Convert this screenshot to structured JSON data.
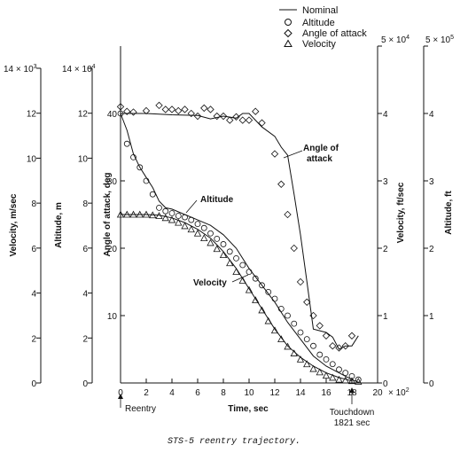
{
  "caption": "STS-5 reentry trajectory.",
  "legend": {
    "position": "top-right",
    "entries": [
      {
        "label": "Nominal",
        "marker": "line"
      },
      {
        "label": "Altitude",
        "marker": "circle"
      },
      {
        "label": "Angle of attack",
        "marker": "diamond"
      },
      {
        "label": "Velocity",
        "marker": "triangle"
      }
    ]
  },
  "annotations": {
    "aoa": [
      "Angle of",
      "attack"
    ],
    "altitude": "Altitude",
    "velocity": "Velocity",
    "reentry": "Reentry",
    "touchdown": [
      "Touchdown",
      "1821 sec"
    ]
  },
  "axes": {
    "x": {
      "label": "Time, sec",
      "ticks": [
        "0",
        "2",
        "4",
        "6",
        "8",
        "10",
        "12",
        "14",
        "16",
        "18",
        "20"
      ],
      "multiplier": "× 10",
      "multiplier_exp": "2"
    },
    "aoa": {
      "label": "Angle of attack, deg",
      "ticks": [
        "10",
        "20",
        "30",
        "40"
      ]
    },
    "vel_si": {
      "label": "Velocity, m/sec",
      "ticks": [
        "0",
        "2",
        "4",
        "6",
        "8",
        "10",
        "12"
      ],
      "multiplier": "14 × 10",
      "multiplier_exp": "3"
    },
    "alt_si": {
      "label": "Altitude, m",
      "ticks": [
        "0",
        "2",
        "4",
        "6",
        "8",
        "10",
        "12"
      ],
      "multiplier": "14 × 10",
      "multiplier_exp": "4"
    },
    "vel_ft": {
      "label": "Velocity, ft/sec",
      "ticks": [
        "0",
        "1",
        "2",
        "3",
        "4"
      ],
      "multiplier": "5 × 10",
      "multiplier_exp": "4"
    },
    "alt_ft": {
      "label": "Altitude, ft",
      "ticks": [
        "0",
        "1",
        "2",
        "3",
        "4"
      ],
      "multiplier": "5 × 10",
      "multiplier_exp": "5"
    }
  },
  "chart_data": {
    "type": "line",
    "xlabel": "Time, sec (× 10^2)",
    "ylabel": "Angle of attack, deg",
    "xlim": [
      0,
      20
    ],
    "ylim": [
      0,
      50
    ],
    "grid": false,
    "series": [
      {
        "name": "Angle of attack",
        "nominal": [
          [
            0,
            40.0
          ],
          [
            2,
            40.0
          ],
          [
            4,
            39.8
          ],
          [
            6,
            39.7
          ],
          [
            7,
            39.2
          ],
          [
            8,
            39.6
          ],
          [
            9,
            39.3
          ],
          [
            9.5,
            40.0
          ],
          [
            10,
            40.0
          ],
          [
            11,
            38.0
          ],
          [
            12,
            36.6
          ],
          [
            12.5,
            35.0
          ],
          [
            13,
            33.8
          ],
          [
            13.5,
            28.0
          ],
          [
            14,
            22.0
          ],
          [
            14.5,
            15.0
          ],
          [
            15,
            8.0
          ],
          [
            16,
            7.5
          ],
          [
            16.5,
            6.8
          ],
          [
            17,
            5.0
          ],
          [
            17.5,
            5.5
          ],
          [
            18,
            5.5
          ],
          [
            18.5,
            7.0
          ]
        ],
        "flight": [
          [
            0,
            41.0
          ],
          [
            0.5,
            40.3
          ],
          [
            1,
            40.2
          ],
          [
            2,
            40.4
          ],
          [
            3,
            41.2
          ],
          [
            3.5,
            40.6
          ],
          [
            4,
            40.6
          ],
          [
            4.5,
            40.4
          ],
          [
            5,
            40.6
          ],
          [
            5.5,
            40.0
          ],
          [
            6,
            39.6
          ],
          [
            6.5,
            40.8
          ],
          [
            7,
            40.6
          ],
          [
            7.5,
            39.6
          ],
          [
            8,
            39.6
          ],
          [
            8.5,
            39.0
          ],
          [
            9,
            39.5
          ],
          [
            9.5,
            39.0
          ],
          [
            10,
            39.0
          ],
          [
            10.5,
            40.3
          ],
          [
            11,
            38.6
          ],
          [
            12,
            34.0
          ],
          [
            12.5,
            29.5
          ],
          [
            13,
            25.0
          ],
          [
            13.5,
            20.0
          ],
          [
            14,
            15.0
          ],
          [
            14.5,
            12.0
          ],
          [
            15,
            10.0
          ],
          [
            15.5,
            8.5
          ],
          [
            16,
            7.0
          ],
          [
            16.5,
            5.5
          ],
          [
            17,
            5.2
          ],
          [
            17.5,
            5.5
          ],
          [
            18,
            7.0
          ]
        ]
      },
      {
        "name": "Altitude",
        "nominal": [
          [
            0,
            40.0
          ],
          [
            0.5,
            37.5
          ],
          [
            1,
            34.0
          ],
          [
            1.5,
            32.0
          ],
          [
            2,
            30.5
          ],
          [
            2.5,
            29.0
          ],
          [
            3,
            27.0
          ],
          [
            3.5,
            26.0
          ],
          [
            4,
            25.8
          ],
          [
            5,
            25.0
          ],
          [
            6,
            24.2
          ],
          [
            7,
            23.4
          ],
          [
            8,
            22.0
          ],
          [
            9,
            20.0
          ],
          [
            10,
            17.0
          ],
          [
            11,
            14.5
          ],
          [
            12,
            12.0
          ],
          [
            13,
            9.0
          ],
          [
            14,
            6.5
          ],
          [
            15,
            4.0
          ],
          [
            16,
            2.5
          ],
          [
            17,
            1.5
          ],
          [
            18,
            0.5
          ],
          [
            18.5,
            0.1
          ]
        ],
        "flight": [
          [
            0,
            40.0
          ],
          [
            0.5,
            35.5
          ],
          [
            1,
            33.5
          ],
          [
            1.5,
            32.0
          ],
          [
            2,
            30.0
          ],
          [
            2.5,
            28.0
          ],
          [
            3,
            26.0
          ],
          [
            3.5,
            25.5
          ],
          [
            4,
            25.2
          ],
          [
            4.5,
            24.8
          ],
          [
            5,
            24.6
          ],
          [
            5.5,
            24.2
          ],
          [
            6,
            23.6
          ],
          [
            6.5,
            23.0
          ],
          [
            7,
            22.2
          ],
          [
            7.5,
            21.4
          ],
          [
            8,
            20.6
          ],
          [
            8.5,
            19.5
          ],
          [
            9,
            18.5
          ],
          [
            9.5,
            17.5
          ],
          [
            10,
            16.5
          ],
          [
            10.5,
            15.5
          ],
          [
            11,
            14.5
          ],
          [
            11.5,
            13.5
          ],
          [
            12,
            12.5
          ],
          [
            12.5,
            11.0
          ],
          [
            13,
            10.0
          ],
          [
            13.5,
            8.8
          ],
          [
            14,
            7.5
          ],
          [
            14.5,
            6.5
          ],
          [
            15,
            5.5
          ],
          [
            15.5,
            4.2
          ],
          [
            16,
            3.5
          ],
          [
            16.5,
            2.8
          ],
          [
            17,
            2.0
          ],
          [
            17.5,
            1.5
          ],
          [
            18,
            1.0
          ],
          [
            18.5,
            0.5
          ]
        ]
      },
      {
        "name": "Velocity",
        "nominal": [
          [
            0,
            25.0
          ],
          [
            2,
            25.0
          ],
          [
            3,
            24.9
          ],
          [
            4,
            24.5
          ],
          [
            5,
            23.8
          ],
          [
            6,
            22.8
          ],
          [
            7,
            21.5
          ],
          [
            8,
            19.5
          ],
          [
            9,
            17.0
          ],
          [
            10,
            14.0
          ],
          [
            11,
            11.0
          ],
          [
            12,
            8.0
          ],
          [
            13,
            5.5
          ],
          [
            14,
            3.8
          ],
          [
            15,
            2.5
          ],
          [
            16,
            1.5
          ],
          [
            17,
            0.8
          ],
          [
            18,
            0.3
          ]
        ],
        "flight": [
          [
            0,
            25.0
          ],
          [
            0.5,
            25.0
          ],
          [
            1,
            25.0
          ],
          [
            1.5,
            25.0
          ],
          [
            2,
            25.0
          ],
          [
            2.5,
            24.9
          ],
          [
            3,
            24.8
          ],
          [
            3.5,
            24.5
          ],
          [
            4,
            24.2
          ],
          [
            4.5,
            23.8
          ],
          [
            5,
            23.3
          ],
          [
            5.5,
            22.8
          ],
          [
            6,
            22.2
          ],
          [
            6.5,
            21.5
          ],
          [
            7,
            20.8
          ],
          [
            7.5,
            19.9
          ],
          [
            8,
            19.0
          ],
          [
            8.5,
            17.8
          ],
          [
            9,
            16.5
          ],
          [
            9.5,
            15.2
          ],
          [
            10,
            13.8
          ],
          [
            10.5,
            12.3
          ],
          [
            11,
            10.8
          ],
          [
            11.5,
            9.2
          ],
          [
            12,
            7.8
          ],
          [
            12.5,
            6.5
          ],
          [
            13,
            5.4
          ],
          [
            13.5,
            4.4
          ],
          [
            14,
            3.5
          ],
          [
            14.5,
            2.8
          ],
          [
            15,
            2.1
          ],
          [
            15.5,
            1.6
          ],
          [
            16,
            1.1
          ],
          [
            16.5,
            0.8
          ],
          [
            17,
            0.5
          ],
          [
            17.5,
            0.4
          ],
          [
            18,
            0.3
          ],
          [
            18.5,
            0.2
          ]
        ]
      }
    ]
  }
}
